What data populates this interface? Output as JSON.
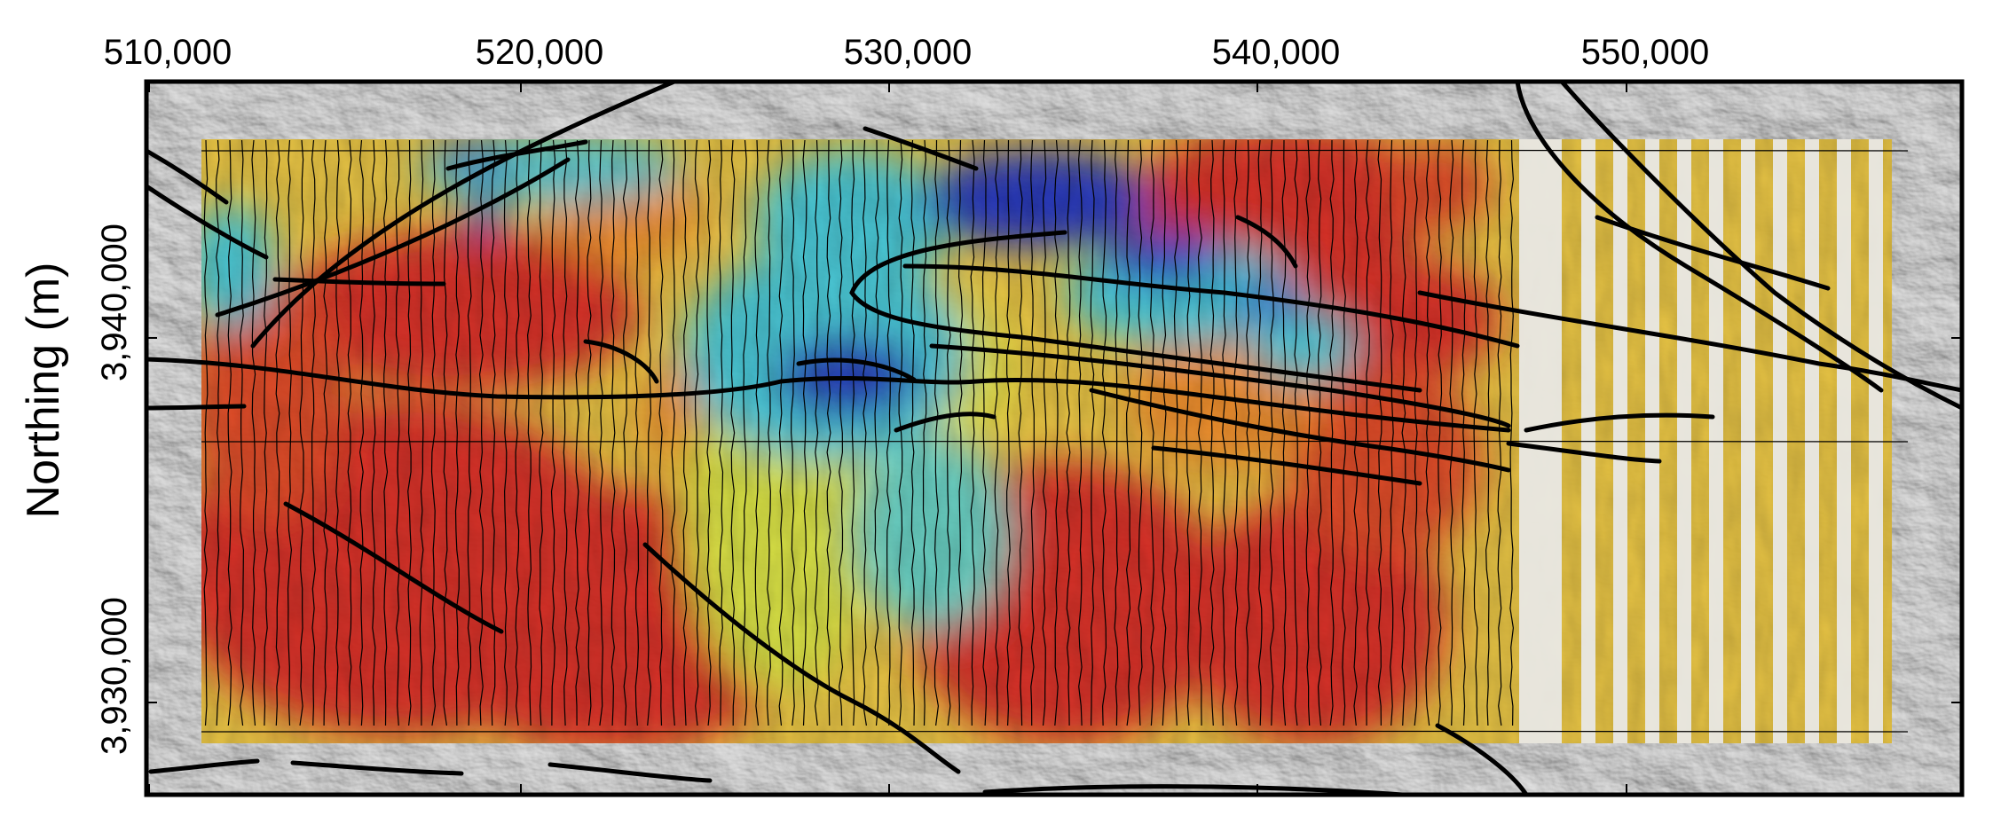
{
  "figure": {
    "y_axis_title": "Northing (m)"
  },
  "x_axis": {
    "tick_labels": [
      "510,000",
      "520,000",
      "530,000",
      "540,000",
      "550,000"
    ]
  },
  "y_axis": {
    "tick_labels": [
      "3,940,000",
      "3,930,000"
    ]
  },
  "layers": {
    "basemap": "grayscale shaded-relief terrain",
    "overlay": "color-coded survey grid (blue = low, red = high)",
    "lines": "black fault traces and thin flight lines"
  },
  "colors": {
    "low": "#1a2fb8",
    "mid_low": "#3fc7d6",
    "mid": "#e6e63a",
    "mid_high": "#f08a24",
    "high": "#d8261c",
    "fault": "#000000",
    "gap": "#e9e9e9"
  }
}
